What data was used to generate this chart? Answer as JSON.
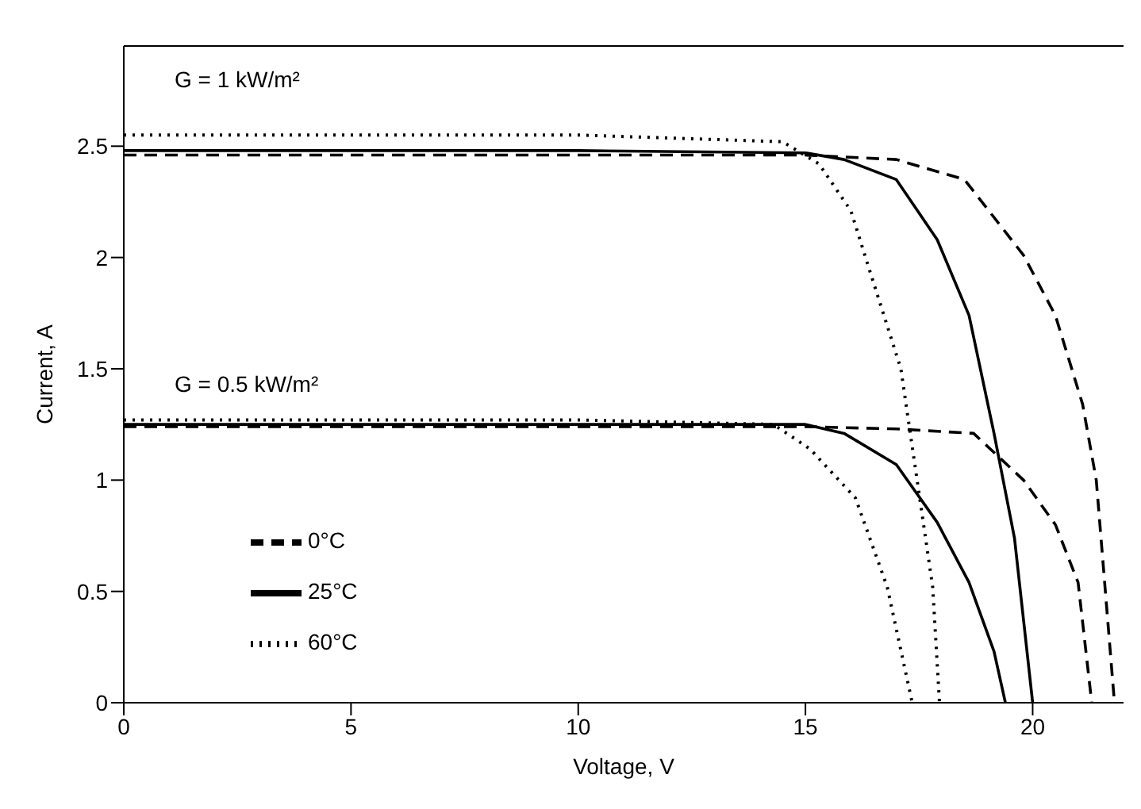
{
  "chart_data": {
    "type": "line",
    "xlabel": "Voltage, V",
    "ylabel": "Current, A",
    "xlim": [
      0,
      22
    ],
    "xticks": [
      0,
      5,
      10,
      15,
      20
    ],
    "ylim": [
      0,
      2.95
    ],
    "yticks": [
      0,
      0.5,
      1,
      1.5,
      2,
      2.5
    ],
    "legend": "bottom left",
    "marker": "none",
    "annotations": [
      "G = 1 kW/m²",
      "G = 0.5 kW/m²"
    ],
    "series": [
      {
        "name": "0°C",
        "color": "#000000",
        "line_style": "dashed",
        "x": [
          0,
          10,
          15,
          17,
          18.5,
          19.8,
          20.5,
          21.1,
          21.4,
          21.8
        ],
        "values": [
          2.46,
          2.46,
          2.46,
          2.44,
          2.35,
          2.01,
          1.74,
          1.34,
          1.0,
          0
        ]
      },
      {
        "name": "25°C",
        "color": "#000000",
        "line_style": "solid",
        "x": [
          0,
          10,
          15,
          15.85,
          17,
          17.9,
          18.6,
          19.15,
          19.6,
          20
        ],
        "values": [
          2.48,
          2.48,
          2.47,
          2.44,
          2.35,
          2.08,
          1.74,
          1.21,
          0.74,
          0
        ]
      },
      {
        "name": "60°C",
        "color": "#000000",
        "line_style": "dotted",
        "x": [
          0,
          10,
          14.5,
          15.3,
          16,
          16.4,
          17.1,
          17.8,
          17.95
        ],
        "values": [
          2.55,
          2.55,
          2.52,
          2.42,
          2.21,
          1.95,
          1.5,
          0.52,
          0
        ]
      },
      {
        "color": "#000000",
        "line_style": "dashed",
        "x": [
          0,
          10,
          15,
          17,
          18.7,
          19.8,
          20.5,
          21,
          21.3
        ],
        "values": [
          1.24,
          1.24,
          1.24,
          1.23,
          1.21,
          1.0,
          0.8,
          0.54,
          0
        ]
      },
      {
        "color": "#000000",
        "line_style": "solid",
        "x": [
          0,
          10,
          15,
          15.85,
          17,
          17.9,
          18.6,
          19.15,
          19.4
        ],
        "values": [
          1.25,
          1.25,
          1.25,
          1.21,
          1.07,
          0.81,
          0.54,
          0.23,
          0
        ]
      },
      {
        "color": "#000000",
        "line_style": "dotted",
        "x": [
          0,
          10,
          14.3,
          15.1,
          16.1,
          16.8,
          17.35
        ],
        "values": [
          1.27,
          1.27,
          1.25,
          1.14,
          0.92,
          0.52,
          0
        ]
      }
    ]
  }
}
